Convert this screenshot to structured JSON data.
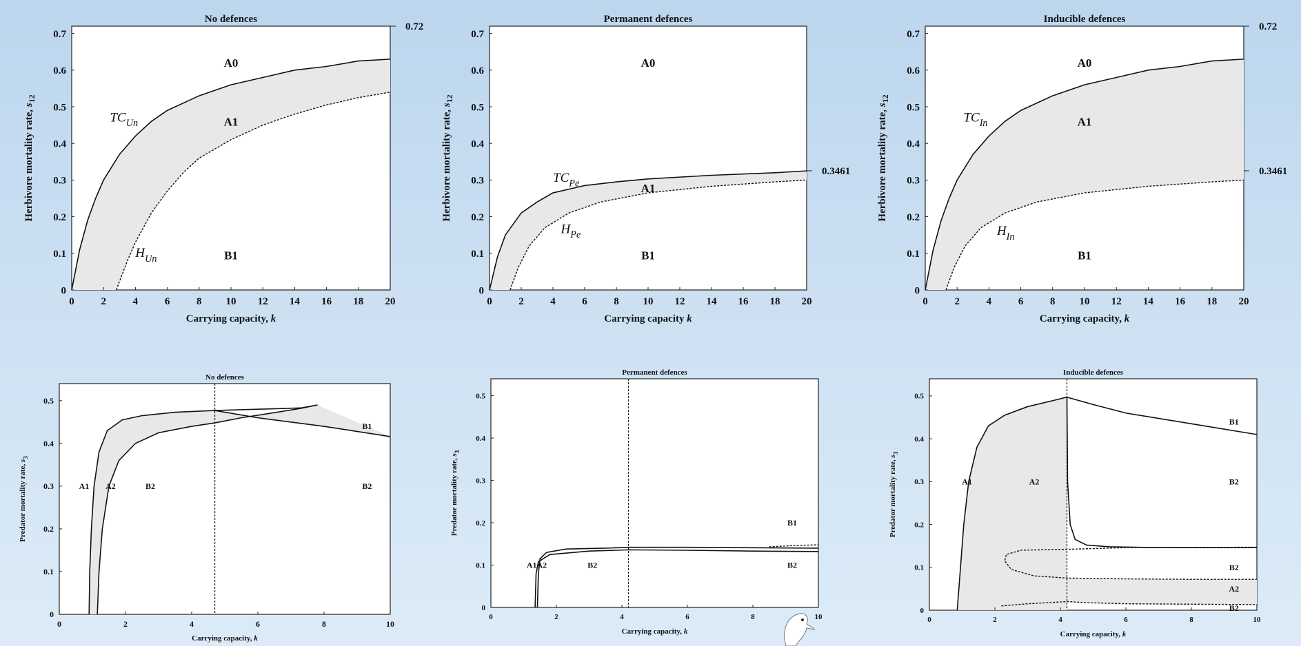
{
  "colors": {
    "background": "#c9def1",
    "band": "#e8e8e8",
    "frame": "#ffffff",
    "ink": "#111111"
  },
  "chart_data": [
    {
      "id": "top-no-defences",
      "type": "area",
      "title": "No defences",
      "xlabel": "Carrying capacity, k",
      "ylabel": "Herbivore mortality rate, s12",
      "xlim": [
        0,
        20
      ],
      "ylim": [
        0,
        0.72
      ],
      "xticks": [
        "0",
        "2",
        "4",
        "6",
        "8",
        "10",
        "12",
        "14",
        "16",
        "18",
        "20"
      ],
      "yticks": [
        "0",
        "0.1",
        "0.2",
        "0.3",
        "0.4",
        "0.5",
        "0.6",
        "0.7"
      ],
      "side_labels": [
        "0.72"
      ],
      "series": [
        {
          "name": "TC_Un",
          "style": "solid",
          "points": [
            [
              0,
              0
            ],
            [
              0.5,
              0.11
            ],
            [
              1,
              0.19
            ],
            [
              1.5,
              0.25
            ],
            [
              2,
              0.3
            ],
            [
              3,
              0.37
            ],
            [
              4,
              0.42
            ],
            [
              5,
              0.46
            ],
            [
              6,
              0.49
            ],
            [
              8,
              0.53
            ],
            [
              10,
              0.56
            ],
            [
              12,
              0.58
            ],
            [
              14,
              0.6
            ],
            [
              16,
              0.61
            ],
            [
              18,
              0.625
            ],
            [
              20,
              0.63
            ]
          ]
        },
        {
          "name": "H_Un",
          "style": "dash",
          "points": [
            [
              2.8,
              0
            ],
            [
              3.5,
              0.08
            ],
            [
              4,
              0.13
            ],
            [
              5,
              0.21
            ],
            [
              6,
              0.27
            ],
            [
              7,
              0.32
            ],
            [
              8,
              0.36
            ],
            [
              10,
              0.41
            ],
            [
              12,
              0.45
            ],
            [
              14,
              0.48
            ],
            [
              16,
              0.505
            ],
            [
              18,
              0.525
            ],
            [
              20,
              0.54
            ]
          ]
        }
      ],
      "annotations": [
        {
          "text": "A0",
          "x": 10,
          "y": 0.62
        },
        {
          "text": "A1",
          "x": 10,
          "y": 0.46
        },
        {
          "text": "B1",
          "x": 10,
          "y": 0.095
        },
        {
          "text": "TC_Un",
          "x": 2.4,
          "y": 0.46
        },
        {
          "text": "H_Un",
          "x": 4,
          "y": 0.09
        }
      ]
    },
    {
      "id": "top-permanent-defences",
      "type": "area",
      "title": "Permanent defences",
      "xlabel": "Carrying capacity k",
      "ylabel": "Herbivore mortality rate, s12",
      "xlim": [
        0,
        20
      ],
      "ylim": [
        0,
        0.72
      ],
      "xticks": [
        "0",
        "2",
        "4",
        "6",
        "8",
        "10",
        "12",
        "14",
        "16",
        "18",
        "20"
      ],
      "yticks": [
        "0",
        "0.1",
        "0.2",
        "0.3",
        "0.4",
        "0.5",
        "0.6",
        "0.7"
      ],
      "side_labels": [
        "0.3461"
      ],
      "series": [
        {
          "name": "TC_Pe",
          "style": "solid",
          "points": [
            [
              0,
              0
            ],
            [
              0.5,
              0.09
            ],
            [
              1,
              0.15
            ],
            [
              2,
              0.21
            ],
            [
              3,
              0.24
            ],
            [
              4,
              0.265
            ],
            [
              6,
              0.285
            ],
            [
              8,
              0.295
            ],
            [
              10,
              0.303
            ],
            [
              14,
              0.313
            ],
            [
              18,
              0.32
            ],
            [
              20,
              0.325
            ]
          ]
        },
        {
          "name": "H_Pe",
          "style": "dash",
          "points": [
            [
              1.3,
              0
            ],
            [
              1.8,
              0.06
            ],
            [
              2.5,
              0.12
            ],
            [
              3.5,
              0.17
            ],
            [
              5,
              0.21
            ],
            [
              7,
              0.24
            ],
            [
              10,
              0.265
            ],
            [
              14,
              0.283
            ],
            [
              18,
              0.295
            ],
            [
              20,
              0.3
            ]
          ]
        }
      ],
      "annotations": [
        {
          "text": "A0",
          "x": 10,
          "y": 0.62
        },
        {
          "text": "A1",
          "x": 10,
          "y": 0.278
        },
        {
          "text": "B1",
          "x": 10,
          "y": 0.095
        },
        {
          "text": "TC_Pe",
          "x": 4,
          "y": 0.295
        },
        {
          "text": "H_Pe",
          "x": 4.5,
          "y": 0.155
        }
      ]
    },
    {
      "id": "top-inducible-defences",
      "type": "area",
      "title": "Inducible defences",
      "xlabel": "Carrying capacity, k",
      "ylabel": "Herbivore mortality rate, s12",
      "xlim": [
        0,
        20
      ],
      "ylim": [
        0,
        0.72
      ],
      "xticks": [
        "0",
        "2",
        "4",
        "6",
        "8",
        "10",
        "12",
        "14",
        "16",
        "18",
        "20"
      ],
      "yticks": [
        "0",
        "0.1",
        "0.2",
        "0.3",
        "0.4",
        "0.5",
        "0.6",
        "0.7"
      ],
      "side_labels": [
        "0.72",
        "0.3461"
      ],
      "series": [
        {
          "name": "TC_In",
          "style": "solid",
          "points": [
            [
              0,
              0
            ],
            [
              0.5,
              0.11
            ],
            [
              1,
              0.19
            ],
            [
              1.5,
              0.25
            ],
            [
              2,
              0.3
            ],
            [
              3,
              0.37
            ],
            [
              4,
              0.42
            ],
            [
              5,
              0.46
            ],
            [
              6,
              0.49
            ],
            [
              8,
              0.53
            ],
            [
              10,
              0.56
            ],
            [
              12,
              0.58
            ],
            [
              14,
              0.6
            ],
            [
              16,
              0.61
            ],
            [
              18,
              0.625
            ],
            [
              20,
              0.63
            ]
          ]
        },
        {
          "name": "H_In",
          "style": "dash",
          "points": [
            [
              1.3,
              0
            ],
            [
              1.8,
              0.06
            ],
            [
              2.5,
              0.12
            ],
            [
              3.5,
              0.17
            ],
            [
              5,
              0.21
            ],
            [
              7,
              0.24
            ],
            [
              10,
              0.265
            ],
            [
              14,
              0.283
            ],
            [
              18,
              0.295
            ],
            [
              20,
              0.3
            ]
          ]
        }
      ],
      "annotations": [
        {
          "text": "A0",
          "x": 10,
          "y": 0.62
        },
        {
          "text": "A1",
          "x": 10,
          "y": 0.46
        },
        {
          "text": "B1",
          "x": 10,
          "y": 0.095
        },
        {
          "text": "TC_In",
          "x": 2.4,
          "y": 0.46
        },
        {
          "text": "H_In",
          "x": 4.5,
          "y": 0.15
        }
      ]
    },
    {
      "id": "bottom-no-defences",
      "type": "area",
      "title": "No defences",
      "xlabel": "Carrying capacity, k",
      "ylabel": "Predator mortality rate, s3",
      "xlim": [
        0,
        10
      ],
      "ylim": [
        0,
        0.54
      ],
      "xticks": [
        "0",
        "2",
        "4",
        "6",
        "8",
        "10"
      ],
      "yticks": [
        "0",
        "0.1",
        "0.2",
        "0.3",
        "0.4",
        "0.5"
      ],
      "vline": 4.7,
      "series": [
        {
          "name": "upper",
          "style": "solid",
          "points": [
            [
              0.9,
              0
            ],
            [
              0.92,
              0.1
            ],
            [
              0.97,
              0.2
            ],
            [
              1.05,
              0.3
            ],
            [
              1.2,
              0.38
            ],
            [
              1.45,
              0.43
            ],
            [
              1.9,
              0.455
            ],
            [
              2.5,
              0.465
            ],
            [
              3.5,
              0.473
            ],
            [
              4.7,
              0.477
            ],
            [
              6,
              0.46
            ],
            [
              8,
              0.44
            ],
            [
              10,
              0.416
            ]
          ]
        },
        {
          "name": "lower",
          "style": "solid",
          "points": [
            [
              1.15,
              0
            ],
            [
              1.2,
              0.1
            ],
            [
              1.3,
              0.2
            ],
            [
              1.5,
              0.3
            ],
            [
              1.8,
              0.36
            ],
            [
              2.3,
              0.4
            ],
            [
              3,
              0.425
            ],
            [
              4,
              0.44
            ],
            [
              4.7,
              0.448
            ],
            [
              5.5,
              0.46
            ],
            [
              6.5,
              0.472
            ],
            [
              7.3,
              0.482
            ],
            [
              7.8,
              0.49
            ]
          ]
        },
        {
          "name": "return",
          "style": "solid",
          "points": [
            [
              7.8,
              0.49
            ],
            [
              7.3,
              0.483
            ],
            [
              6,
              0.48
            ],
            [
              4.7,
              0.477
            ]
          ]
        }
      ],
      "annotations": [
        {
          "text": "A1",
          "x": 0.75,
          "y": 0.3
        },
        {
          "text": "A2",
          "x": 1.55,
          "y": 0.3
        },
        {
          "text": "B2",
          "x": 2.75,
          "y": 0.3
        },
        {
          "text": "B1",
          "x": 9.3,
          "y": 0.44
        },
        {
          "text": "B2",
          "x": 9.3,
          "y": 0.3
        }
      ]
    },
    {
      "id": "bottom-permanent-defences",
      "type": "line",
      "title": "Permanent defences",
      "xlabel": "Carrying capacity, k",
      "ylabel": "Predator mortality rate, s3",
      "xlim": [
        0,
        10
      ],
      "ylim": [
        0,
        0.54
      ],
      "xticks": [
        "0",
        "2",
        "4",
        "6",
        "8",
        "10"
      ],
      "yticks": [
        "0",
        "0.1",
        "0.2",
        "0.3",
        "0.4",
        "0.5"
      ],
      "vline": 4.2,
      "series": [
        {
          "name": "upper",
          "style": "solid",
          "points": [
            [
              1.42,
              0
            ],
            [
              1.45,
              0.08
            ],
            [
              1.5,
              0.115
            ],
            [
              1.7,
              0.13
            ],
            [
              2.3,
              0.138
            ],
            [
              3.5,
              0.14
            ],
            [
              4.2,
              0.142
            ],
            [
              6,
              0.142
            ],
            [
              8,
              0.141
            ],
            [
              10,
              0.14
            ]
          ]
        },
        {
          "name": "lower",
          "style": "solid",
          "points": [
            [
              1.35,
              0
            ],
            [
              1.38,
              0.08
            ],
            [
              1.45,
              0.108
            ],
            [
              1.8,
              0.125
            ],
            [
              3,
              0.133
            ],
            [
              4.2,
              0.136
            ],
            [
              6,
              0.135
            ],
            [
              8,
              0.133
            ],
            [
              10,
              0.132
            ]
          ]
        },
        {
          "name": "tail",
          "style": "dash",
          "points": [
            [
              8.5,
              0.143
            ],
            [
              9.2,
              0.146
            ],
            [
              10,
              0.148
            ]
          ]
        }
      ],
      "annotations": [
        {
          "text": "A1A2",
          "x": 1.4,
          "y": 0.1
        },
        {
          "text": "B2",
          "x": 3.1,
          "y": 0.1
        },
        {
          "text": "B1",
          "x": 9.2,
          "y": 0.2
        },
        {
          "text": "B2",
          "x": 9.2,
          "y": 0.1
        }
      ]
    },
    {
      "id": "bottom-inducible-defences",
      "type": "area",
      "title": "Inducible defences",
      "xlabel": "Carrying capacity, k",
      "ylabel": "Predator mortality rate, s3",
      "xlim": [
        0,
        10
      ],
      "ylim": [
        0,
        0.54
      ],
      "xticks": [
        "0",
        "2",
        "4",
        "6",
        "8",
        "10"
      ],
      "yticks": [
        "0",
        "0.1",
        "0.2",
        "0.3",
        "0.4",
        "0.5"
      ],
      "vline": 4.2,
      "series": [
        {
          "name": "outer",
          "style": "solid",
          "points": [
            [
              0.85,
              0
            ],
            [
              0.95,
              0.1
            ],
            [
              1.05,
              0.2
            ],
            [
              1.2,
              0.3
            ],
            [
              1.45,
              0.38
            ],
            [
              1.8,
              0.43
            ],
            [
              2.3,
              0.455
            ],
            [
              3,
              0.475
            ],
            [
              4.2,
              0.497
            ],
            [
              5,
              0.48
            ],
            [
              6,
              0.46
            ],
            [
              8,
              0.435
            ],
            [
              10,
              0.41
            ]
          ]
        },
        {
          "name": "spike",
          "style": "solid",
          "points": [
            [
              4.2,
              0.497
            ],
            [
              4.22,
              0.3
            ],
            [
              4.3,
              0.2
            ],
            [
              4.45,
              0.165
            ],
            [
              4.8,
              0.152
            ],
            [
              5.5,
              0.148
            ],
            [
              7,
              0.146
            ],
            [
              10,
              0.146
            ]
          ]
        },
        {
          "name": "inner-upper",
          "style": "dash",
          "points": [
            [
              10,
              0.147
            ],
            [
              6,
              0.146
            ],
            [
              4.2,
              0.142
            ],
            [
              2.8,
              0.14
            ],
            [
              2.35,
              0.13
            ],
            [
              2.3,
              0.115
            ],
            [
              2.5,
              0.095
            ],
            [
              3.2,
              0.08
            ],
            [
              4.2,
              0.075
            ],
            [
              6,
              0.073
            ],
            [
              8,
              0.072
            ],
            [
              10,
              0.072
            ]
          ]
        },
        {
          "name": "inner-lower",
          "style": "dash",
          "points": [
            [
              2.2,
              0.01
            ],
            [
              3,
              0.015
            ],
            [
              4.2,
              0.02
            ],
            [
              5,
              0.017
            ],
            [
              6,
              0.015
            ],
            [
              8,
              0.014
            ],
            [
              10,
              0.013
            ]
          ]
        }
      ],
      "annotations": [
        {
          "text": "A1",
          "x": 1.15,
          "y": 0.3
        },
        {
          "text": "A2",
          "x": 3.2,
          "y": 0.3
        },
        {
          "text": "B1",
          "x": 9.3,
          "y": 0.44
        },
        {
          "text": "B2",
          "x": 9.3,
          "y": 0.3
        },
        {
          "text": "B2",
          "x": 9.3,
          "y": 0.1
        },
        {
          "text": "A2",
          "x": 9.3,
          "y": 0.05
        },
        {
          "text": "B2",
          "x": 9.3,
          "y": 0.005
        }
      ]
    }
  ]
}
